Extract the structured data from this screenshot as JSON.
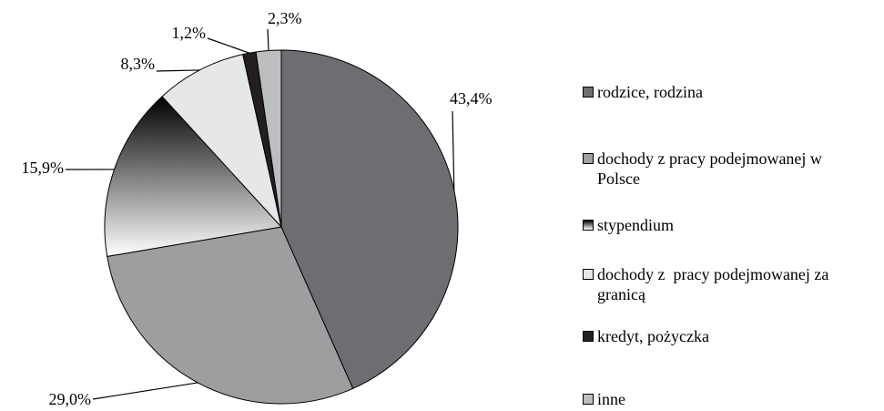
{
  "chart_data": {
    "type": "pie",
    "categories": [
      "rodzice, rodzina",
      "dochody z pracy podejmowanej w Polsce",
      "stypendium",
      "dochody z  pracy podejmowanej za granicą",
      "kredyt, pożyczka",
      "inne"
    ],
    "values": [
      43.4,
      29.0,
      15.9,
      8.3,
      1.2,
      2.3
    ],
    "value_labels": [
      "43,4%",
      "29,0%",
      "15,9%",
      "8,3%",
      "1,2%",
      "2,3%"
    ],
    "colors": [
      "#6d6e71",
      "#9d9ea0",
      [
        "#000000",
        "#ffffff"
      ],
      "#e6e7e8",
      "#231f20",
      "#bcbec0"
    ],
    "legend": "right"
  }
}
